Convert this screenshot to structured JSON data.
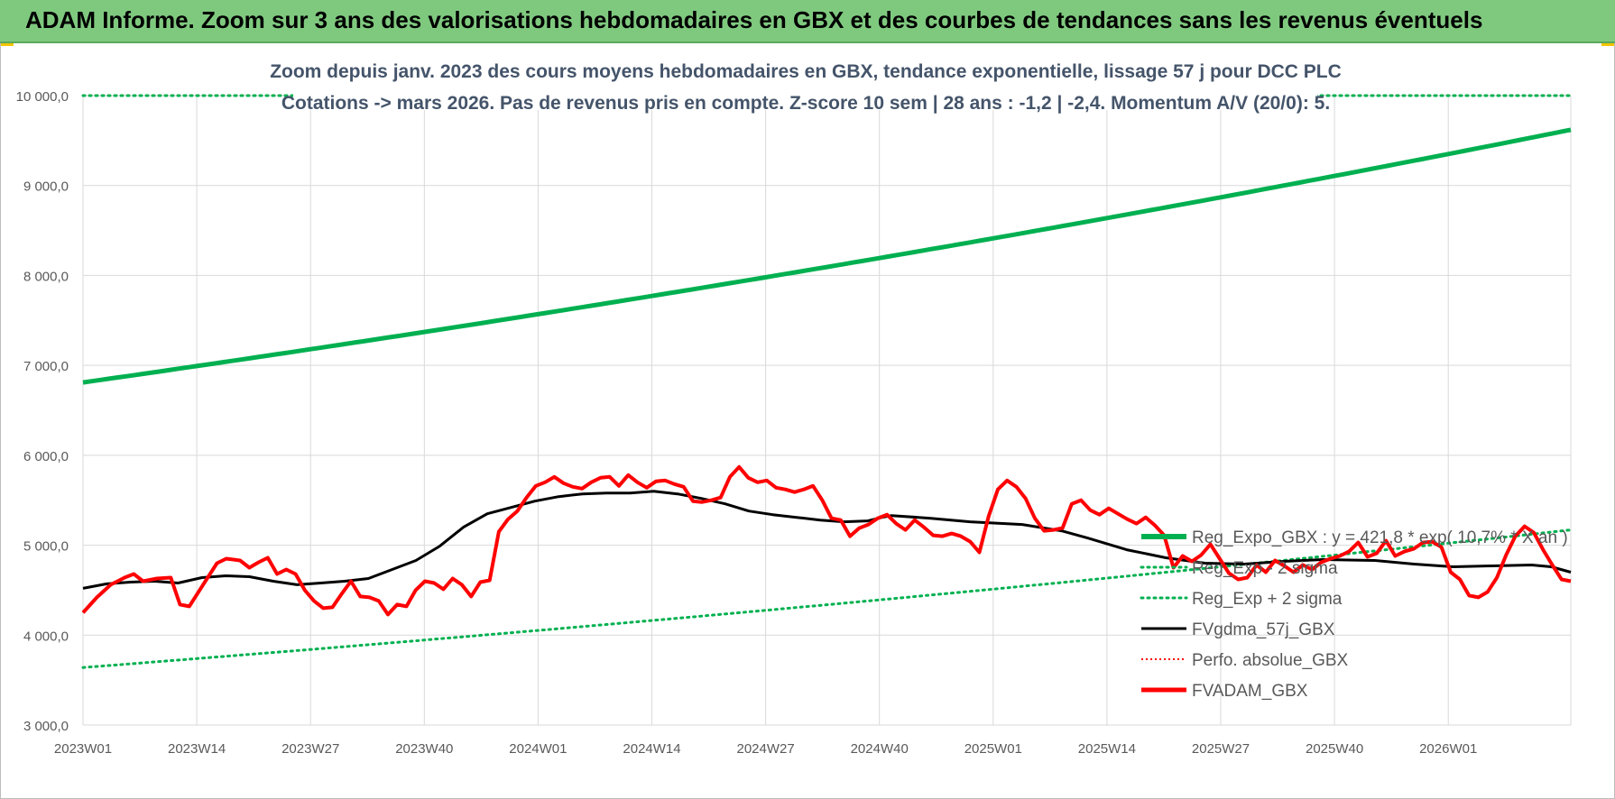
{
  "banner": {
    "title": "ADAM Informe. Zoom sur 3 ans des valorisations hebdomadaires en GBX et des courbes de tendances sans les revenus éventuels"
  },
  "colors": {
    "banner_bg": "#7fc97f",
    "reg_expo": "#00b050",
    "sigma": "#00b050",
    "fvgdma": "#000000",
    "perfo": "#ff0000",
    "fvadam": "#ff0000",
    "grid": "#d9d9d9",
    "title_text": "#44546a"
  },
  "chart_data": {
    "type": "line",
    "title": "Zoom depuis janv. 2023 des cours moyens hebdomadaires en GBX, tendance exponentielle, lissage 57 j pour DCC PLC",
    "subtitle": "Cotations -> mars 2026. Pas de revenus pris en compte. Z-score 10 sem | 28 ans : -1,2 | -2,4. Momentum A/V (20/0): 5.",
    "x_tick_labels": [
      "2023W01",
      "2023W14",
      "2023W27",
      "2023W40",
      "2024W01",
      "2024W14",
      "2024W27",
      "2024W40",
      "2025W01",
      "2025W14",
      "2025W27",
      "2025W40",
      "2026W01"
    ],
    "y_tick_labels": [
      "3 000,0",
      "4 000,0",
      "5 000,0",
      "6 000,0",
      "7 000,0",
      "8 000,0",
      "9 000,0",
      "10 000,0"
    ],
    "ylim": [
      3000,
      10000
    ],
    "n_weeks": 171,
    "grid": true,
    "legend_position": "right",
    "legend": [
      {
        "key": "reg_expo",
        "label": "Reg_Expo_GBX : y = 421,8 * exp( 10,7% * X an )",
        "style": "thick"
      },
      {
        "key": "minus2",
        "label": "Reg_Exp - 2 sigma",
        "style": "dotted"
      },
      {
        "key": "plus2",
        "label": "Reg_Exp + 2 sigma",
        "style": "dotted"
      },
      {
        "key": "fvgdma",
        "label": "FVgdma_57j_GBX",
        "style": "solid"
      },
      {
        "key": "perfo",
        "label": "Perfo. absolue_GBX",
        "style": "dotted-red"
      },
      {
        "key": "fvadam",
        "label": "FVADAM_GBX",
        "style": "thick-red"
      }
    ],
    "series": {
      "reg_expo": {
        "start": 6810,
        "end": 9620
      },
      "plus2": {
        "value": 10000
      },
      "minus2": {
        "start": 3640,
        "end": 5170
      },
      "fvgdma": [
        [
          0,
          4520
        ],
        [
          5,
          4570
        ],
        [
          10,
          4590
        ],
        [
          15,
          4600
        ],
        [
          20,
          4580
        ],
        [
          25,
          4640
        ],
        [
          30,
          4660
        ],
        [
          35,
          4650
        ],
        [
          40,
          4600
        ],
        [
          45,
          4560
        ],
        [
          50,
          4580
        ],
        [
          55,
          4600
        ],
        [
          60,
          4630
        ],
        [
          65,
          4730
        ],
        [
          70,
          4830
        ],
        [
          75,
          4990
        ],
        [
          80,
          5200
        ],
        [
          85,
          5350
        ],
        [
          90,
          5420
        ],
        [
          95,
          5490
        ],
        [
          100,
          5540
        ],
        [
          105,
          5570
        ],
        [
          110,
          5580
        ],
        [
          115,
          5580
        ],
        [
          120,
          5600
        ],
        [
          125,
          5570
        ],
        [
          130,
          5520
        ],
        [
          135,
          5460
        ],
        [
          140,
          5380
        ],
        [
          145,
          5340
        ],
        [
          150,
          5310
        ],
        [
          155,
          5280
        ],
        [
          160,
          5260
        ],
        [
          165,
          5270
        ],
        [
          168,
          5310
        ],
        [
          170,
          5330
        ]
      ],
      "fvgdma_tail": [
        [
          170,
          5330
        ],
        [
          176,
          5300
        ],
        [
          182,
          5260
        ],
        [
          190,
          5230
        ],
        [
          196,
          5160
        ],
        [
          200,
          5080
        ],
        [
          206,
          4950
        ],
        [
          212,
          4860
        ],
        [
          218,
          4800
        ],
        [
          224,
          4790
        ],
        [
          230,
          4820
        ],
        [
          236,
          4840
        ],
        [
          244,
          4830
        ],
        [
          250,
          4790
        ],
        [
          256,
          4760
        ],
        [
          262,
          4770
        ],
        [
          268,
          4780
        ],
        [
          271,
          4760
        ],
        [
          274,
          4700
        ]
      ],
      "fvadam": [
        [
          0,
          4250
        ],
        [
          3,
          4420
        ],
        [
          6,
          4560
        ],
        [
          9,
          4640
        ],
        [
          11,
          4680
        ],
        [
          13,
          4600
        ],
        [
          16,
          4630
        ],
        [
          19,
          4640
        ],
        [
          21,
          4340
        ],
        [
          23,
          4320
        ],
        [
          26,
          4560
        ],
        [
          29,
          4800
        ],
        [
          31,
          4850
        ],
        [
          34,
          4830
        ],
        [
          36,
          4750
        ],
        [
          38,
          4810
        ],
        [
          40,
          4860
        ],
        [
          42,
          4680
        ],
        [
          44,
          4730
        ],
        [
          46,
          4680
        ],
        [
          48,
          4500
        ],
        [
          50,
          4380
        ],
        [
          52,
          4300
        ],
        [
          54,
          4310
        ],
        [
          56,
          4460
        ],
        [
          58,
          4600
        ],
        [
          60,
          4430
        ],
        [
          62,
          4420
        ],
        [
          64,
          4380
        ],
        [
          66,
          4230
        ],
        [
          68,
          4340
        ],
        [
          70,
          4320
        ],
        [
          72,
          4500
        ],
        [
          74,
          4600
        ],
        [
          76,
          4580
        ],
        [
          78,
          4510
        ],
        [
          80,
          4630
        ],
        [
          82,
          4560
        ],
        [
          84,
          4430
        ],
        [
          86,
          4590
        ],
        [
          88,
          4610
        ],
        [
          90,
          5150
        ],
        [
          92,
          5290
        ],
        [
          94,
          5380
        ],
        [
          96,
          5530
        ],
        [
          98,
          5660
        ],
        [
          100,
          5700
        ],
        [
          102,
          5760
        ],
        [
          104,
          5690
        ],
        [
          106,
          5650
        ],
        [
          108,
          5630
        ],
        [
          110,
          5700
        ],
        [
          112,
          5750
        ],
        [
          114,
          5760
        ],
        [
          116,
          5660
        ],
        [
          118,
          5780
        ],
        [
          120,
          5700
        ],
        [
          122,
          5640
        ],
        [
          124,
          5710
        ],
        [
          126,
          5720
        ],
        [
          128,
          5680
        ],
        [
          130,
          5650
        ],
        [
          132,
          5490
        ],
        [
          134,
          5480
        ],
        [
          136,
          5500
        ],
        [
          138,
          5530
        ],
        [
          140,
          5760
        ],
        [
          142,
          5870
        ],
        [
          144,
          5750
        ],
        [
          146,
          5700
        ],
        [
          148,
          5720
        ],
        [
          150,
          5640
        ],
        [
          152,
          5620
        ],
        [
          154,
          5590
        ],
        [
          156,
          5620
        ],
        [
          158,
          5660
        ],
        [
          160,
          5500
        ],
        [
          162,
          5300
        ],
        [
          164,
          5280
        ],
        [
          166,
          5100
        ],
        [
          168,
          5190
        ],
        [
          170,
          5230
        ],
        [
          172,
          5300
        ],
        [
          174,
          5340
        ],
        [
          176,
          5240
        ],
        [
          178,
          5170
        ],
        [
          180,
          5280
        ],
        [
          182,
          5200
        ],
        [
          184,
          5110
        ],
        [
          186,
          5100
        ],
        [
          188,
          5130
        ],
        [
          190,
          5100
        ],
        [
          192,
          5040
        ],
        [
          194,
          4920
        ],
        [
          196,
          5320
        ],
        [
          198,
          5620
        ],
        [
          200,
          5720
        ],
        [
          202,
          5650
        ],
        [
          204,
          5520
        ],
        [
          206,
          5300
        ],
        [
          208,
          5160
        ],
        [
          210,
          5170
        ],
        [
          212,
          5190
        ],
        [
          214,
          5460
        ],
        [
          216,
          5500
        ],
        [
          218,
          5390
        ],
        [
          220,
          5340
        ],
        [
          222,
          5410
        ],
        [
          224,
          5350
        ],
        [
          226,
          5290
        ],
        [
          228,
          5240
        ],
        [
          230,
          5310
        ],
        [
          232,
          5220
        ],
        [
          234,
          5110
        ],
        [
          236,
          4750
        ],
        [
          238,
          4880
        ],
        [
          240,
          4820
        ],
        [
          242,
          4890
        ],
        [
          244,
          5010
        ],
        [
          246,
          4850
        ],
        [
          248,
          4690
        ],
        [
          250,
          4620
        ],
        [
          252,
          4640
        ],
        [
          254,
          4780
        ],
        [
          256,
          4700
        ],
        [
          258,
          4830
        ],
        [
          260,
          4770
        ],
        [
          262,
          4700
        ],
        [
          264,
          4780
        ],
        [
          266,
          4730
        ],
        [
          268,
          4810
        ],
        [
          270,
          4850
        ],
        [
          272,
          4880
        ],
        [
          274,
          4930
        ],
        [
          276,
          5030
        ],
        [
          278,
          4870
        ],
        [
          280,
          4910
        ],
        [
          282,
          5050
        ],
        [
          284,
          4880
        ],
        [
          286,
          4930
        ],
        [
          288,
          4960
        ],
        [
          290,
          5030
        ],
        [
          292,
          5040
        ],
        [
          294,
          4980
        ],
        [
          296,
          4700
        ],
        [
          298,
          4620
        ],
        [
          300,
          4440
        ],
        [
          302,
          4420
        ],
        [
          304,
          4480
        ],
        [
          306,
          4640
        ],
        [
          308,
          4890
        ],
        [
          310,
          5100
        ],
        [
          312,
          5210
        ],
        [
          314,
          5140
        ],
        [
          316,
          4950
        ],
        [
          318,
          4780
        ],
        [
          320,
          4620
        ],
        [
          322,
          4600
        ]
      ],
      "fvadam_scale": 322
    }
  }
}
